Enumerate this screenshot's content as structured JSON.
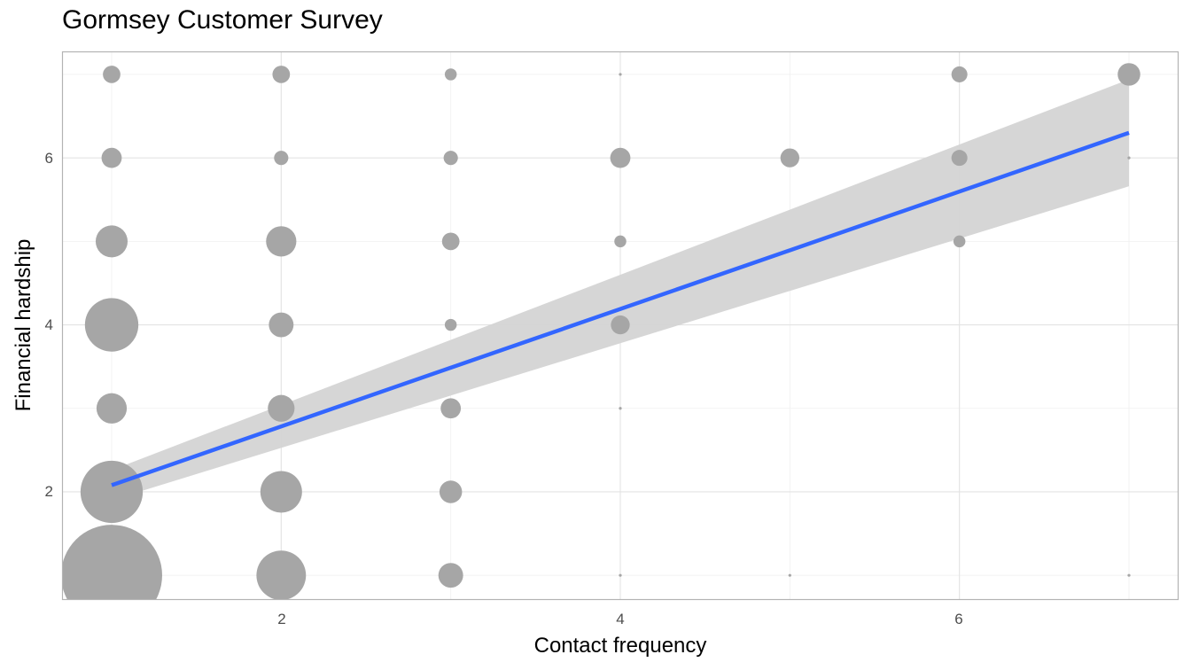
{
  "chart_data": {
    "type": "scatter",
    "title": "Gormsey Customer Survey",
    "xlabel": "Contact frequency",
    "ylabel": "Financial hardship",
    "xlim": [
      0.71,
      7.29
    ],
    "ylim": [
      0.71,
      7.27
    ],
    "x_ticks": [
      "2",
      "4",
      "6"
    ],
    "y_ticks": [
      "2",
      "4",
      "6"
    ],
    "grid": true,
    "point_color": "#a6a6a6",
    "points": [
      {
        "x": 1,
        "y": 1,
        "n": 100
      },
      {
        "x": 1,
        "y": 2,
        "n": 38
      },
      {
        "x": 1,
        "y": 3,
        "n": 9
      },
      {
        "x": 1,
        "y": 4,
        "n": 28
      },
      {
        "x": 1,
        "y": 5,
        "n": 10
      },
      {
        "x": 1,
        "y": 6,
        "n": 4
      },
      {
        "x": 1,
        "y": 7,
        "n": 3
      },
      {
        "x": 2,
        "y": 1,
        "n": 24
      },
      {
        "x": 2,
        "y": 2,
        "n": 17
      },
      {
        "x": 2,
        "y": 3,
        "n": 7
      },
      {
        "x": 2,
        "y": 4,
        "n": 6
      },
      {
        "x": 2,
        "y": 5,
        "n": 9
      },
      {
        "x": 2,
        "y": 6,
        "n": 2
      },
      {
        "x": 2,
        "y": 7,
        "n": 3
      },
      {
        "x": 3,
        "y": 1,
        "n": 6
      },
      {
        "x": 3,
        "y": 2,
        "n": 5
      },
      {
        "x": 3,
        "y": 3,
        "n": 4
      },
      {
        "x": 3,
        "y": 4,
        "n": 1.4
      },
      {
        "x": 3,
        "y": 5,
        "n": 3
      },
      {
        "x": 3,
        "y": 6,
        "n": 2
      },
      {
        "x": 3,
        "y": 7,
        "n": 1.4
      },
      {
        "x": 4,
        "y": 1,
        "n": 0.08
      },
      {
        "x": 4,
        "y": 3,
        "n": 0.08
      },
      {
        "x": 4,
        "y": 4,
        "n": 3.5
      },
      {
        "x": 4,
        "y": 5,
        "n": 1.4
      },
      {
        "x": 4,
        "y": 6,
        "n": 4
      },
      {
        "x": 4,
        "y": 7,
        "n": 0.08
      },
      {
        "x": 5,
        "y": 1,
        "n": 0.08
      },
      {
        "x": 5,
        "y": 6,
        "n": 3.5
      },
      {
        "x": 6,
        "y": 5,
        "n": 1.4
      },
      {
        "x": 6,
        "y": 6,
        "n": 2.5
      },
      {
        "x": 6,
        "y": 7,
        "n": 2.5
      },
      {
        "x": 7,
        "y": 1,
        "n": 0.08
      },
      {
        "x": 7,
        "y": 6,
        "n": 0.08
      },
      {
        "x": 7,
        "y": 7,
        "n": 5
      }
    ],
    "trend": {
      "color": "#3366ff",
      "band_color": "#d4d4d4",
      "x": [
        1,
        7
      ],
      "y": [
        2.08,
        6.3
      ],
      "ci_lower": [
        1.9,
        5.66
      ],
      "ci_upper": [
        2.26,
        6.94
      ]
    }
  }
}
